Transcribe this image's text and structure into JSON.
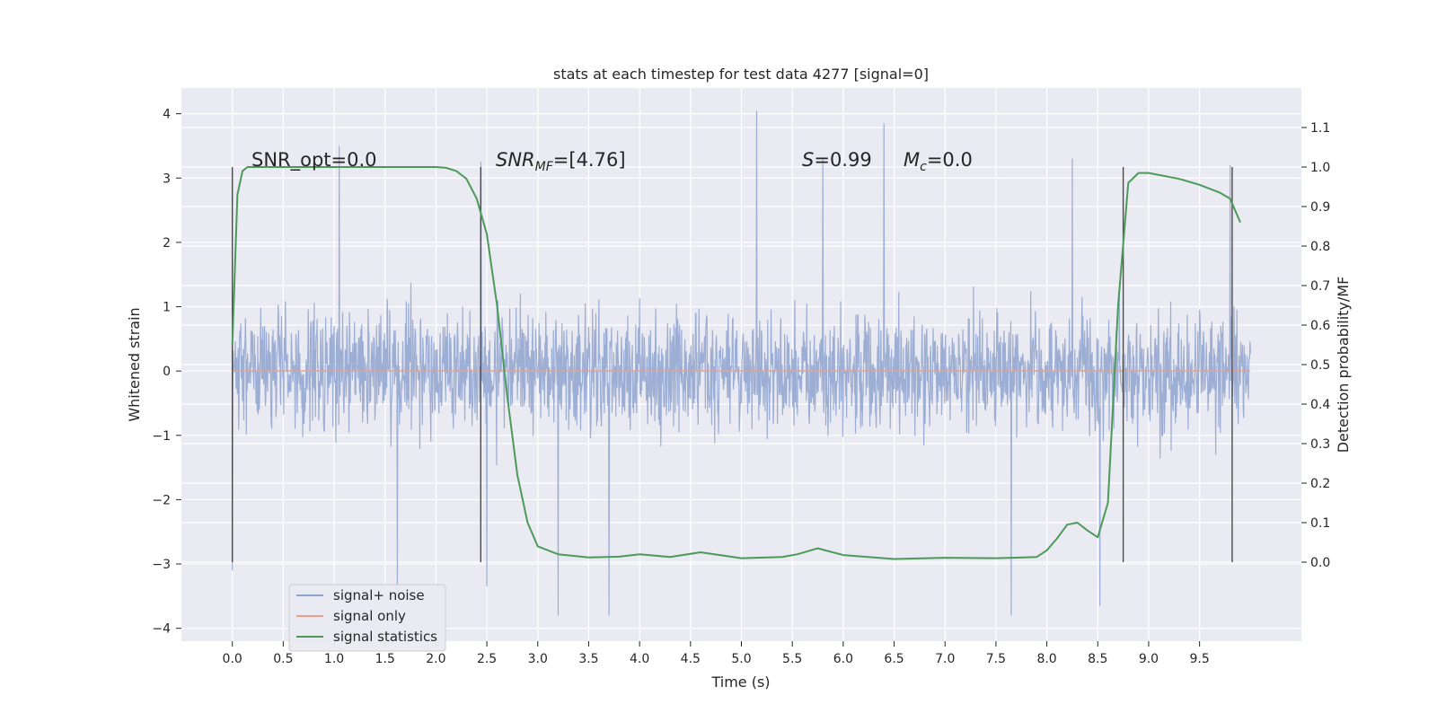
{
  "chart_data": {
    "type": "line",
    "title": "stats at each timestep for test data 4277 [signal=0]",
    "xlabel": "Time (s)",
    "ylabel": "Whitened strain",
    "y2label": "Detection probability/MF",
    "xlim": [
      -0.5,
      10.5
    ],
    "ylim": [
      -4.2,
      4.4
    ],
    "y2lim": [
      -0.2,
      1.2
    ],
    "x_ticks": [
      0.0,
      0.5,
      1.0,
      1.5,
      2.0,
      2.5,
      3.0,
      3.5,
      4.0,
      4.5,
      5.0,
      5.5,
      6.0,
      6.5,
      7.0,
      7.5,
      8.0,
      8.5,
      9.0,
      9.5
    ],
    "x_tick_labels": [
      "0.0",
      "0.5",
      "1.0",
      "1.5",
      "2.0",
      "2.5",
      "3.0",
      "3.5",
      "4.0",
      "4.5",
      "5.0",
      "5.5",
      "6.0",
      "6.5",
      "7.0",
      "7.5",
      "8.0",
      "8.5",
      "9.0",
      "9.5"
    ],
    "y_ticks": [
      4,
      3,
      2,
      1,
      0,
      -1,
      -2,
      -3,
      -4
    ],
    "y_tick_labels": [
      "4",
      "3",
      "2",
      "1",
      "0",
      "−1",
      "−2",
      "−3",
      "−4"
    ],
    "y2_ticks": [
      1.1,
      1.0,
      0.9,
      0.8,
      0.7,
      0.6,
      0.5,
      0.4,
      0.3,
      0.2,
      0.1,
      0.0
    ],
    "y2_tick_labels": [
      "1.1",
      "1.0",
      "0.9",
      "0.8",
      "0.7",
      "0.6",
      "0.5",
      "0.4",
      "0.3",
      "0.2",
      "0.1",
      "0.0"
    ],
    "grid": true,
    "legend_position": "lower-left",
    "legend": [
      "signal+ noise",
      "signal only",
      "signal statistics"
    ],
    "annotations": [
      {
        "text": "SNR_opt=0.0"
      },
      {
        "text": "SNR",
        "sub": "MF",
        "suffix": "=[4.76]"
      },
      {
        "text": "S",
        "suffix": "=0.99"
      },
      {
        "text": "M",
        "sub": "c",
        "suffix": "=0.0"
      }
    ],
    "vertical_markers_x": [
      0.0,
      2.44,
      8.75,
      9.82
    ],
    "series": [
      {
        "name": "signal+ noise",
        "color": "#8fa3cf",
        "axis": "left",
        "x_range": [
          0.0,
          10.0
        ],
        "envelope_upper_peaks": [
          [
            0.0,
            2.0
          ],
          [
            1.05,
            3.5
          ],
          [
            2.44,
            3.25
          ],
          [
            5.15,
            4.05
          ],
          [
            5.8,
            3.3
          ],
          [
            6.4,
            3.85
          ],
          [
            8.25,
            3.3
          ],
          [
            9.8,
            3.2
          ]
        ],
        "envelope_lower_peaks": [
          [
            0.0,
            -3.1
          ],
          [
            1.62,
            -3.5
          ],
          [
            2.5,
            -3.35
          ],
          [
            3.2,
            -3.8
          ],
          [
            3.7,
            -3.8
          ],
          [
            7.65,
            -3.8
          ],
          [
            8.52,
            -3.65
          ]
        ]
      },
      {
        "name": "signal only",
        "color": "#e8a08a",
        "axis": "left",
        "x": [
          0.0,
          10.0
        ],
        "y": [
          0.0,
          0.0
        ]
      },
      {
        "name": "signal statistics",
        "color": "#4c9a5a",
        "axis": "right",
        "x": [
          0.0,
          0.05,
          0.1,
          0.15,
          0.25,
          0.5,
          1.0,
          1.5,
          2.0,
          2.1,
          2.2,
          2.3,
          2.4,
          2.5,
          2.6,
          2.7,
          2.8,
          2.9,
          3.0,
          3.2,
          3.5,
          3.8,
          4.0,
          4.3,
          4.6,
          5.0,
          5.4,
          5.55,
          5.75,
          6.0,
          6.5,
          7.0,
          7.5,
          7.9,
          8.0,
          8.1,
          8.2,
          8.3,
          8.4,
          8.5,
          8.6,
          8.7,
          8.8,
          8.9,
          9.0,
          9.3,
          9.5,
          9.7,
          9.8,
          9.9
        ],
        "y": [
          0.55,
          0.93,
          0.99,
          1.0,
          1.0,
          1.0,
          1.0,
          1.0,
          1.0,
          0.998,
          0.99,
          0.97,
          0.92,
          0.83,
          0.65,
          0.42,
          0.22,
          0.1,
          0.04,
          0.02,
          0.012,
          0.014,
          0.02,
          0.013,
          0.025,
          0.01,
          0.013,
          0.02,
          0.035,
          0.018,
          0.008,
          0.011,
          0.01,
          0.013,
          0.03,
          0.06,
          0.095,
          0.1,
          0.08,
          0.063,
          0.15,
          0.65,
          0.96,
          0.985,
          0.985,
          0.97,
          0.955,
          0.935,
          0.92,
          0.86
        ]
      }
    ]
  }
}
